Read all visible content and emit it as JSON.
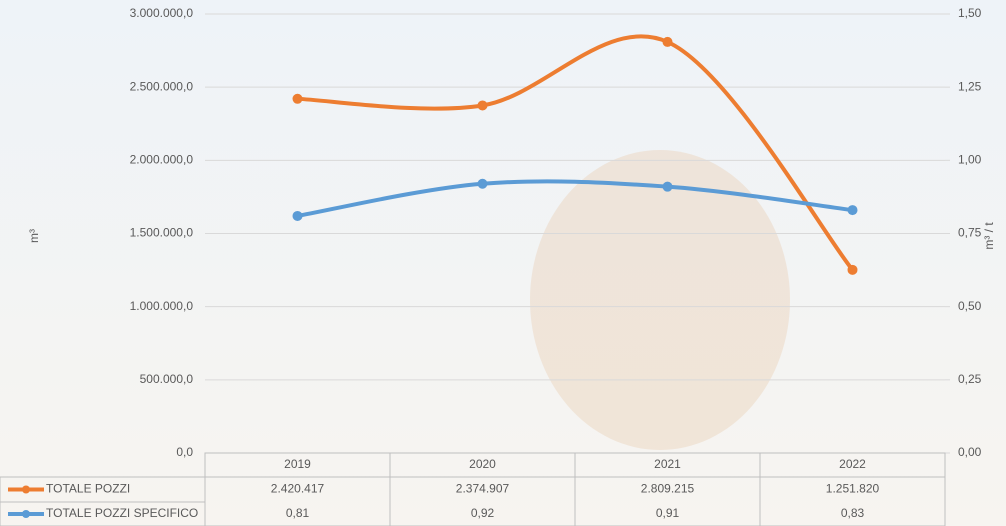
{
  "chart_data": {
    "type": "line",
    "y_label": "m³",
    "y2_label": "m³ / t",
    "categories": [
      "2019",
      "2020",
      "2021",
      "2022"
    ],
    "series": [
      {
        "name": "TOTALE POZZI",
        "color": "#ed7d31",
        "values": [
          2420417,
          2374907,
          2809215,
          1251820
        ],
        "value_labels": [
          "2.420.417",
          "2.374.907",
          "2.809.215",
          "1.251.820"
        ]
      },
      {
        "name": "TOTALE POZZI SPECIFICO",
        "color": "#5b9bd5",
        "axis": "y2",
        "values": [
          0.81,
          0.92,
          0.91,
          0.83
        ],
        "value_labels": [
          "0,81",
          "0,92",
          "0,91",
          "0,83"
        ]
      }
    ],
    "ylim": [
      0,
      3000000
    ],
    "yticks": [
      {
        "value": 0,
        "label": "0,0"
      },
      {
        "value": 500000,
        "label": "500.000,0"
      },
      {
        "value": 1000000,
        "label": "1.000.000,0"
      },
      {
        "value": 1500000,
        "label": "1.500.000,0"
      },
      {
        "value": 2000000,
        "label": "2.000.000,0"
      },
      {
        "value": 2500000,
        "label": "2.500.000,0"
      },
      {
        "value": 3000000,
        "label": "3.000.000,0"
      }
    ],
    "y2lim": [
      0,
      1.5
    ],
    "y2ticks": [
      {
        "value": 0,
        "label": "0,00"
      },
      {
        "value": 0.25,
        "label": "0,25"
      },
      {
        "value": 0.5,
        "label": "0,50"
      },
      {
        "value": 0.75,
        "label": "0,75"
      },
      {
        "value": 1,
        "label": "1,00"
      },
      {
        "value": 1.25,
        "label": "1,25"
      },
      {
        "value": 1.5,
        "label": "1,50"
      }
    ],
    "grid": true
  }
}
